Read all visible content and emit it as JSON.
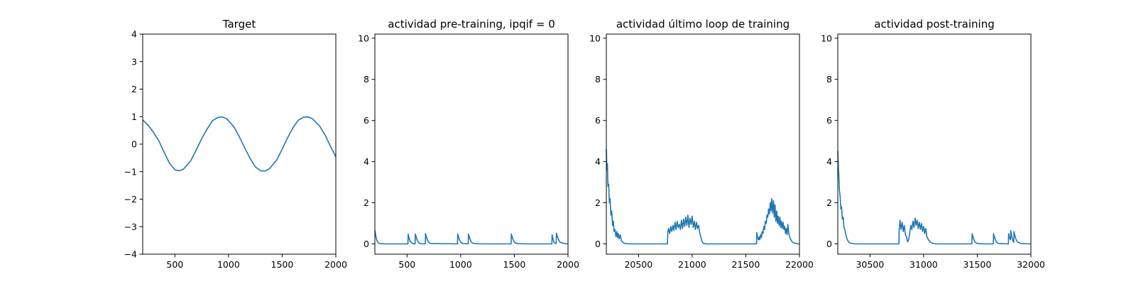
{
  "chart_data": [
    {
      "type": "line",
      "title": "Target",
      "xlim": [
        200,
        2000
      ],
      "ylim": [
        -4,
        4
      ],
      "xticks": [
        500,
        1000,
        1500,
        2000
      ],
      "xtick_labels": [
        "500",
        "1000",
        "1500",
        "2000"
      ],
      "yticks": [
        -4,
        -3,
        -2,
        -1,
        0,
        1,
        2,
        3,
        4
      ],
      "ytick_labels": [
        "−4",
        "−3",
        "−2",
        "−1",
        "0",
        "1",
        "2",
        "3",
        "4"
      ],
      "series": [
        {
          "color": "#1f77b4",
          "x": [
            200,
            250,
            300,
            350,
            400,
            450,
            500,
            540,
            580,
            650,
            700,
            750,
            800,
            850,
            900,
            940,
            980,
            1050,
            1100,
            1150,
            1200,
            1250,
            1300,
            1340,
            1380,
            1450,
            1500,
            1550,
            1600,
            1650,
            1700,
            1740,
            1780,
            1850,
            1900,
            1950,
            2000
          ],
          "y": [
            0.88,
            0.69,
            0.43,
            0.12,
            -0.3,
            -0.7,
            -0.93,
            -0.97,
            -0.91,
            -0.59,
            -0.2,
            0.2,
            0.55,
            0.85,
            0.97,
            0.99,
            0.93,
            0.63,
            0.27,
            -0.13,
            -0.51,
            -0.83,
            -0.97,
            -0.98,
            -0.9,
            -0.57,
            -0.18,
            0.23,
            0.59,
            0.87,
            0.98,
            0.99,
            0.93,
            0.65,
            0.33,
            -0.08,
            -0.45
          ]
        }
      ]
    },
    {
      "type": "line",
      "title": "actividad pre-training, ipqif = 0",
      "xlim": [
        200,
        2000
      ],
      "ylim": [
        -0.5,
        10.2
      ],
      "xticks": [
        500,
        1000,
        1500,
        2000
      ],
      "xtick_labels": [
        "500",
        "1000",
        "1500",
        "2000"
      ],
      "yticks": [
        0,
        2,
        4,
        6,
        8,
        10
      ],
      "ytick_labels": [
        "0",
        "2",
        "4",
        "6",
        "8",
        "10"
      ],
      "series": [
        {
          "color": "#1f77b4",
          "x": [
            200,
            205,
            210,
            220,
            232,
            250,
            300,
            508,
            510,
            520,
            530,
            545,
            560,
            575,
            577,
            590,
            605,
            620,
            640,
            670,
            672,
            685,
            700,
            720,
            970,
            972,
            985,
            1000,
            1020,
            1070,
            1072,
            1085,
            1100,
            1120,
            1200,
            1470,
            1472,
            1485,
            1500,
            1520,
            1600,
            1850,
            1852,
            1862,
            1872,
            1880,
            1890,
            1892,
            1905,
            1920,
            1940,
            1970,
            2000
          ],
          "y": [
            0.65,
            0.5,
            0.35,
            0.15,
            0.05,
            0.01,
            0.0,
            0.0,
            0.48,
            0.25,
            0.12,
            0.04,
            0.01,
            0.0,
            0.48,
            0.25,
            0.08,
            0.02,
            0.0,
            0.0,
            0.5,
            0.25,
            0.08,
            0.02,
            0.0,
            0.48,
            0.25,
            0.08,
            0.02,
            0.0,
            0.48,
            0.25,
            0.08,
            0.02,
            0.0,
            0.0,
            0.48,
            0.25,
            0.08,
            0.02,
            0.0,
            0.0,
            0.45,
            0.2,
            0.06,
            0.03,
            0.02,
            0.52,
            0.3,
            0.12,
            0.05,
            0.01,
            0.0
          ]
        }
      ]
    },
    {
      "type": "line",
      "title": "actividad último loop de training",
      "xlim": [
        20200,
        22000
      ],
      "ylim": [
        -0.5,
        10.2
      ],
      "xticks": [
        20500,
        21000,
        21500,
        22000
      ],
      "xtick_labels": [
        "20500",
        "21000",
        "21500",
        "22000"
      ],
      "yticks": [
        0,
        2,
        4,
        6,
        8,
        10
      ],
      "ytick_labels": [
        "0",
        "2",
        "4",
        "6",
        "8",
        "10"
      ],
      "series": [
        {
          "color": "#1f77b4",
          "x": [
            20200,
            20205,
            20210,
            20215,
            20222,
            20228,
            20235,
            20242,
            20250,
            20258,
            20266,
            20272,
            20280,
            20290,
            20298,
            20305,
            20312,
            20320,
            20330,
            20340,
            20350,
            20360,
            20380,
            20420,
            20770,
            20772,
            20780,
            20790,
            20800,
            20810,
            20820,
            20830,
            20840,
            20850,
            20860,
            20870,
            20880,
            20890,
            20900,
            20910,
            20920,
            20930,
            20940,
            20950,
            20960,
            20970,
            20980,
            20990,
            21000,
            21010,
            21020,
            21030,
            21040,
            21050,
            21060,
            21070,
            21080,
            21090,
            21100,
            21110,
            21130,
            21160,
            21200,
            21600,
            21602,
            21610,
            21618,
            21625,
            21630,
            21638,
            21645,
            21652,
            21660,
            21668,
            21675,
            21682,
            21690,
            21698,
            21705,
            21712,
            21720,
            21728,
            21735,
            21742,
            21750,
            21758,
            21765,
            21772,
            21780,
            21788,
            21795,
            21802,
            21810,
            21818,
            21825,
            21832,
            21840,
            21848,
            21855,
            21862,
            21870,
            21878,
            21885,
            21892,
            21900,
            21905,
            21915,
            21925,
            21935,
            21945,
            21955,
            21965,
            21975,
            21985,
            22000
          ],
          "y": [
            4.6,
            3.6,
            3.9,
            2.8,
            2.9,
            2.0,
            2.2,
            1.4,
            1.6,
            0.9,
            1.1,
            0.6,
            0.7,
            0.35,
            0.6,
            0.3,
            0.5,
            0.25,
            0.45,
            0.15,
            0.1,
            0.05,
            0.01,
            0.0,
            0.0,
            0.55,
            0.75,
            0.5,
            0.85,
            0.6,
            0.9,
            0.65,
            1.05,
            0.7,
            1.1,
            0.8,
            0.95,
            0.7,
            1.15,
            0.75,
            1.2,
            0.85,
            1.3,
            0.9,
            1.4,
            0.8,
            1.25,
            0.95,
            1.35,
            0.8,
            1.1,
            0.7,
            1.05,
            0.75,
            0.9,
            0.55,
            0.35,
            0.15,
            0.05,
            0.02,
            0.0,
            0.0,
            0.0,
            0.0,
            0.55,
            0.3,
            0.2,
            0.35,
            0.2,
            0.45,
            0.3,
            0.6,
            0.5,
            0.85,
            0.7,
            1.1,
            1.0,
            1.4,
            1.3,
            1.7,
            1.45,
            2.0,
            1.6,
            2.2,
            1.5,
            2.1,
            1.3,
            1.9,
            1.1,
            1.6,
            1.0,
            1.35,
            0.9,
            1.3,
            0.8,
            1.1,
            0.75,
            1.05,
            0.7,
            0.85,
            0.5,
            0.75,
            0.45,
            0.95,
            0.55,
            0.4,
            0.25,
            0.15,
            0.08,
            0.05,
            0.04,
            0.02,
            0.01,
            0.0,
            0.0
          ]
        }
      ]
    },
    {
      "type": "line",
      "title": "actividad post-training",
      "xlim": [
        30200,
        32000
      ],
      "ylim": [
        -0.5,
        10.2
      ],
      "xticks": [
        30500,
        31000,
        31500,
        32000
      ],
      "xtick_labels": [
        "30500",
        "31000",
        "31500",
        "32000"
      ],
      "yticks": [
        0,
        2,
        4,
        6,
        8,
        10
      ],
      "ytick_labels": [
        "0",
        "2",
        "4",
        "6",
        "8",
        "10"
      ],
      "series": [
        {
          "color": "#1f77b4",
          "x": [
            30200,
            30205,
            30210,
            30215,
            30222,
            30228,
            30235,
            30242,
            30250,
            30258,
            30266,
            30275,
            30285,
            30300,
            30320,
            30360,
            30770,
            30772,
            30780,
            30790,
            30800,
            30810,
            30820,
            30830,
            30840,
            30850,
            30860,
            30870,
            30880,
            30890,
            30900,
            30910,
            30920,
            30930,
            30940,
            30950,
            30960,
            30970,
            30980,
            30990,
            31000,
            31010,
            31020,
            31030,
            31045,
            31060,
            31080,
            31120,
            31450,
            31452,
            31465,
            31480,
            31500,
            31550,
            31650,
            31652,
            31665,
            31680,
            31700,
            31790,
            31792,
            31800,
            31810,
            31812,
            31822,
            31832,
            31840,
            31842,
            31855,
            31870,
            31890,
            31920,
            32000
          ],
          "y": [
            4.5,
            3.8,
            3.3,
            2.6,
            2.3,
            1.7,
            1.8,
            1.2,
            1.3,
            0.8,
            0.7,
            0.45,
            0.25,
            0.1,
            0.03,
            0.0,
            0.0,
            0.7,
            1.15,
            0.7,
            1.05,
            0.6,
            0.9,
            0.45,
            0.35,
            0.1,
            0.2,
            0.5,
            0.9,
            0.7,
            1.1,
            0.8,
            1.25,
            0.9,
            1.15,
            0.75,
            1.05,
            0.7,
            1.0,
            0.6,
            0.85,
            0.5,
            0.75,
            0.35,
            0.2,
            0.1,
            0.03,
            0.0,
            0.0,
            0.5,
            0.25,
            0.08,
            0.02,
            0.0,
            0.0,
            0.5,
            0.25,
            0.08,
            0.02,
            0.0,
            0.5,
            0.3,
            0.2,
            0.65,
            0.35,
            0.15,
            0.08,
            0.6,
            0.3,
            0.12,
            0.05,
            0.01,
            0.0
          ]
        }
      ]
    }
  ]
}
